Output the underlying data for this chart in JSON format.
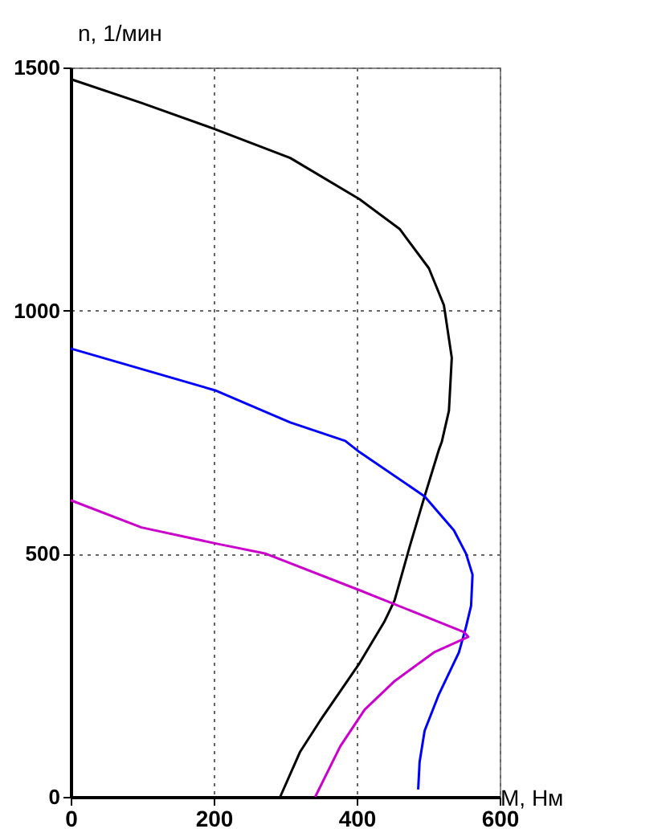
{
  "chart_data": {
    "type": "line",
    "xlabel": "M, Нм",
    "ylabel": "n, 1/мин",
    "xlim": [
      0,
      600
    ],
    "ylim": [
      0,
      1500
    ],
    "xticks": [
      0,
      200,
      400,
      600
    ],
    "yticks": [
      0,
      500,
      1000,
      1500
    ],
    "grid": true,
    "legend": false,
    "marker": "none",
    "line_style": "solid",
    "series": [
      {
        "color": "#000000",
        "x": [
          0,
          99,
          202,
          307,
          404,
          460,
          501,
          522,
          533,
          529,
          519,
          515,
          495,
          474,
          453,
          439,
          404,
          349,
          321,
          293
        ],
        "values": [
          1476,
          1427,
          1373,
          1314,
          1229,
          1168,
          1087,
          1011,
          903,
          794,
          730,
          714,
          618,
          514,
          404,
          361,
          275,
          157,
          93,
          0
        ]
      },
      {
        "color": "#0000ff",
        "x": [
          0,
          202,
          307,
          384,
          404,
          495,
          536,
          553,
          562,
          560,
          553,
          543,
          515,
          495,
          488,
          486
        ],
        "values": [
          922,
          836,
          770,
          732,
          709,
          618,
          548,
          500,
          457,
          393,
          350,
          297,
          211,
          136,
          72,
          15
        ]
      },
      {
        "color": "#cc00cc",
        "x": [
          0,
          99,
          203,
          273,
          404,
          550,
          556,
          508,
          453,
          411,
          377,
          342
        ],
        "values": [
          610,
          554,
          521,
          500,
          425,
          339,
          329,
          297,
          238,
          179,
          104,
          0
        ]
      }
    ]
  }
}
